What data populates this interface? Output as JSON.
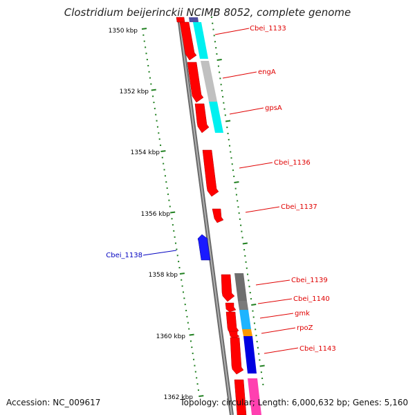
{
  "title": "Clostridium beijerinckii NCIMB 8052, complete genome",
  "footer": {
    "accession": "Accession: NC_009617",
    "summary": "Topology: circular; Length: 6,000,632 bp; Genes: 5,160"
  },
  "scale": {
    "labels": [
      "1350 kbp",
      "1352 kbp",
      "1354 kbp",
      "1356 kbp",
      "1358 kbp",
      "1360 kbp",
      "1362 kbp"
    ]
  },
  "colors": {
    "red": "#ff0000",
    "blue": "#0000e0",
    "cyan": "#00ffff",
    "light_gray": "#c0c0c0",
    "dark_gray": "#6e6e6e",
    "sky_blue": "#1eb4ff",
    "orange": "#ff9900",
    "magenta": "#ff40b0",
    "slate": "#5050a0",
    "tick_green": "#208020",
    "backbone": "#888888"
  },
  "genes": [
    {
      "name": "Cbei_1133",
      "strand": "+",
      "color": "red"
    },
    {
      "name": "engA",
      "strand": "+",
      "color": "red"
    },
    {
      "name": "gpsA",
      "strand": "+",
      "color": "red"
    },
    {
      "name": "Cbei_1136",
      "strand": "+",
      "color": "red"
    },
    {
      "name": "Cbei_1137",
      "strand": "+",
      "color": "red"
    },
    {
      "name": "Cbei_1138",
      "strand": "-",
      "color": "blue"
    },
    {
      "name": "Cbei_1139",
      "strand": "+",
      "color": "red"
    },
    {
      "name": "Cbei_1140",
      "strand": "+",
      "color": "red"
    },
    {
      "name": "gmk",
      "strand": "+",
      "color": "red"
    },
    {
      "name": "rpoZ",
      "strand": "+",
      "color": "red"
    },
    {
      "name": "Cbei_1143",
      "strand": "+",
      "color": "red"
    }
  ]
}
